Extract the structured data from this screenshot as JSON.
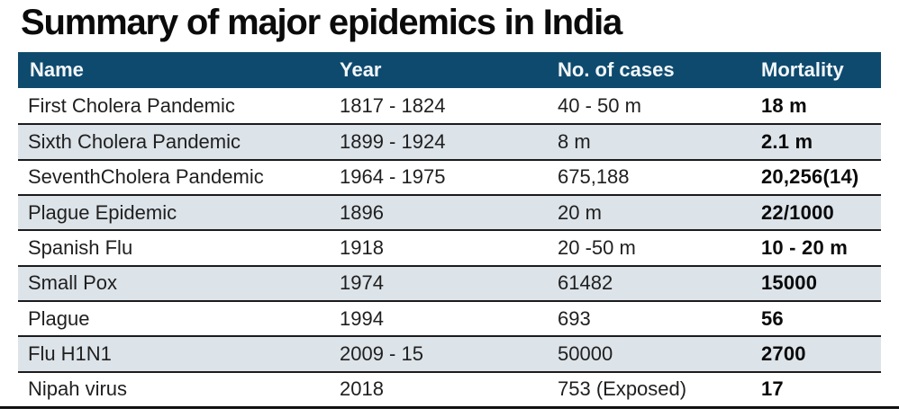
{
  "title": "Summary of major epidemics in India",
  "colors": {
    "header_bg": "#0e4a6e",
    "header_text": "#f2f7fa",
    "stripe_bg": "#dce3e9",
    "row_divider": "#1b1b1b",
    "bottom_rule": "#101010"
  },
  "chart_data": {
    "type": "table",
    "title": "Summary of major epidemics in India",
    "columns": [
      "Name",
      "Year",
      "No. of cases",
      "Mortality"
    ],
    "rows": [
      {
        "name": "First Cholera Pandemic",
        "year": "1817 - 1824",
        "cases": "40 - 50 m",
        "mortality": "18 m"
      },
      {
        "name": "Sixth Cholera Pandemic",
        "year": "1899 - 1924",
        "cases": "8 m",
        "mortality": "2.1 m"
      },
      {
        "name": "SeventhCholera Pandemic",
        "year": "1964 - 1975",
        "cases": "675,188",
        "mortality": "20,256(14)"
      },
      {
        "name": "Plague Epidemic",
        "year": "1896",
        "cases": "20 m",
        "mortality": "22/1000"
      },
      {
        "name": "Spanish Flu",
        "year": "1918",
        "cases": "20 -50 m",
        "mortality": "10 - 20 m"
      },
      {
        "name": "Small Pox",
        "year": "1974",
        "cases": "61482",
        "mortality": "15000"
      },
      {
        "name": "Plague",
        "year": "1994",
        "cases": "693",
        "mortality": "56"
      },
      {
        "name": "Flu H1N1",
        "year": "2009 - 15",
        "cases": "50000",
        "mortality": "2700"
      },
      {
        "name": "Nipah virus",
        "year": "2018",
        "cases": "753 (Exposed)",
        "mortality": "17"
      }
    ]
  }
}
